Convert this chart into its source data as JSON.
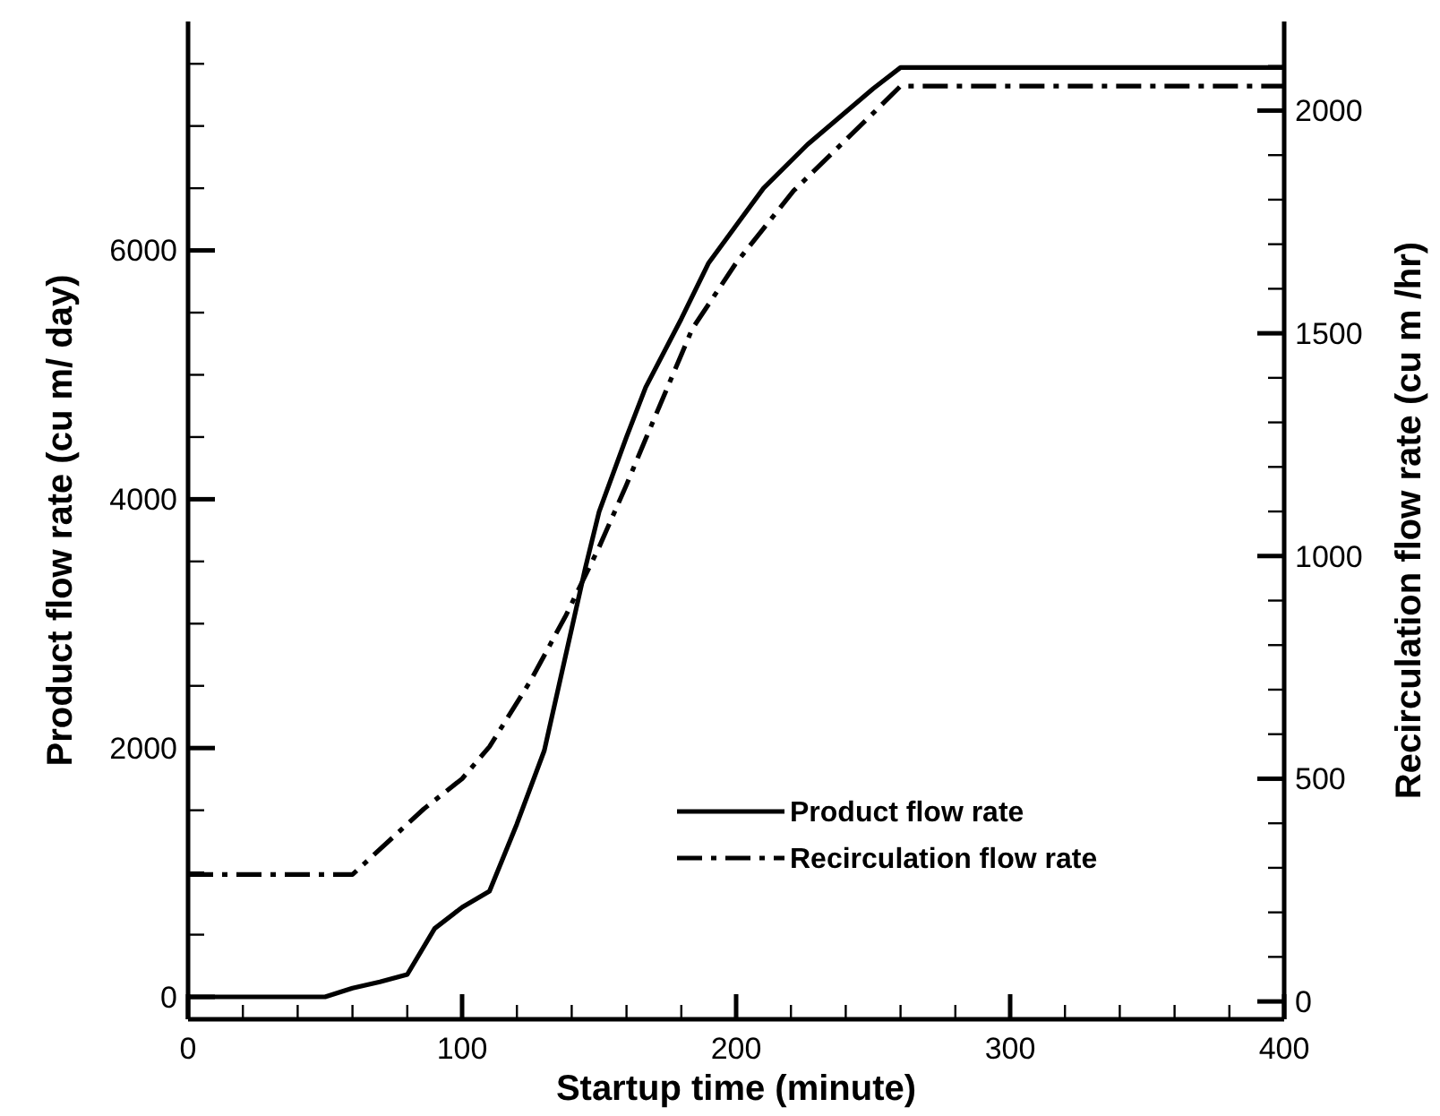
{
  "chart_data": {
    "type": "line",
    "xlabel": "Startup time (minute)",
    "ylabel": "Product flow rate (cu m/ day)",
    "y2label": "Recirculation flow rate (cu m /hr)",
    "xlim": [
      0,
      400
    ],
    "xticks": [
      0,
      {
        "value": 20,
        "label": null
      },
      {
        "value": 40,
        "label": null
      },
      {
        "value": 60,
        "label": null
      },
      {
        "value": 80,
        "label": null
      },
      100,
      {
        "value": 120,
        "label": null
      },
      {
        "value": 140,
        "label": null
      },
      {
        "value": 160,
        "label": null
      },
      {
        "value": 180,
        "label": null
      },
      200,
      {
        "value": 220,
        "label": null
      },
      {
        "value": 240,
        "label": null
      },
      {
        "value": 260,
        "label": null
      },
      {
        "value": 280,
        "label": null
      },
      300,
      {
        "value": 320,
        "label": null
      },
      {
        "value": 340,
        "label": null
      },
      {
        "value": 360,
        "label": null
      },
      {
        "value": 380,
        "label": null
      },
      400
    ],
    "ylim": [
      -180,
      7840
    ],
    "yticks": [
      0,
      {
        "value": 500,
        "label": null
      },
      {
        "value": 1000,
        "label": null
      },
      {
        "value": 1500,
        "label": null
      },
      2000,
      {
        "value": 2500,
        "label": null
      },
      {
        "value": 3000,
        "label": null
      },
      {
        "value": 3500,
        "label": null
      },
      4000,
      {
        "value": 4500,
        "label": null
      },
      {
        "value": 5000,
        "label": null
      },
      {
        "value": 5500,
        "label": null
      },
      6000,
      {
        "value": 6500,
        "label": null
      },
      {
        "value": 7000,
        "label": null
      },
      {
        "value": 7500,
        "label": null
      }
    ],
    "y2lim": [
      -40,
      2200
    ],
    "y2ticks": [
      0,
      {
        "value": 100,
        "label": null
      },
      {
        "value": 200,
        "label": null
      },
      {
        "value": 300,
        "label": null
      },
      {
        "value": 400,
        "label": null
      },
      500,
      {
        "value": 600,
        "label": null
      },
      {
        "value": 700,
        "label": null
      },
      {
        "value": 800,
        "label": null
      },
      {
        "value": 900,
        "label": null
      },
      1000,
      {
        "value": 1100,
        "label": null
      },
      {
        "value": 1200,
        "label": null
      },
      {
        "value": 1300,
        "label": null
      },
      {
        "value": 1400,
        "label": null
      },
      1500,
      {
        "value": 1600,
        "label": null
      },
      {
        "value": 1700,
        "label": null
      },
      {
        "value": 1800,
        "label": null
      },
      {
        "value": 1900,
        "label": null
      },
      2000,
      {
        "value": 2100,
        "label": null
      }
    ],
    "legend": "bottom right",
    "grid": false,
    "marker": "none",
    "series": [
      {
        "name": "Product flow rate",
        "color": "#000000",
        "line_style": "solid",
        "x": [
          0,
          50,
          60,
          70,
          80,
          90,
          100,
          110,
          120,
          130,
          145,
          150,
          160,
          167,
          180,
          190,
          200,
          210,
          226,
          250,
          260,
          400
        ],
        "values": [
          0,
          0,
          70,
          120,
          180,
          550,
          720,
          850,
          1390,
          1980,
          3450,
          3900,
          4500,
          4900,
          5450,
          5900,
          6200,
          6500,
          6850,
          7300,
          7470,
          7470
        ]
      },
      {
        "name": "Recirculation flow rate",
        "color": "#000000",
        "line_style": "dashdot",
        "axis": "y2",
        "x": [
          0,
          60,
          86,
          100,
          110,
          125,
          138,
          150,
          160,
          167,
          184,
          200,
          221,
          250,
          260,
          400
        ],
        "values": [
          285,
          285,
          432,
          500,
          572,
          720,
          868,
          1020,
          1160,
          1263,
          1510,
          1658,
          1820,
          1994,
          2055,
          2055
        ]
      }
    ]
  }
}
